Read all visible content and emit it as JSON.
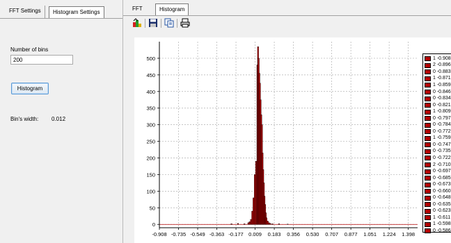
{
  "left_tabs": [
    {
      "label": "FFT Settings",
      "active": false
    },
    {
      "label": "Histogram Settings",
      "active": true
    }
  ],
  "right_tabs": [
    {
      "label": "FFT",
      "active": false
    },
    {
      "label": "Histogram",
      "active": true
    }
  ],
  "settings": {
    "bins_label": "Number of bins",
    "bins_value": "200",
    "histogram_button": "Histogram",
    "bin_width_label": "Bin's width:",
    "bin_width_value": "0.012"
  },
  "toolbar": {
    "icons": [
      "colors-icon",
      "save-icon",
      "copy-icon",
      "print-icon"
    ]
  },
  "colors": {
    "bar_fill": "#b30000",
    "bar_edge": "#000000",
    "baseline": "#b30000"
  },
  "chart_data": {
    "type": "bar",
    "title": "",
    "xlabel": "",
    "ylabel": "",
    "xlim": [
      -0.908,
      1.484
    ],
    "ylim": [
      -10,
      550
    ],
    "yticks": [
      0,
      50,
      100,
      150,
      200,
      250,
      300,
      350,
      400,
      450,
      500
    ],
    "xticks": [
      "-0.908",
      "-0.735",
      "-0.549",
      "-0.363",
      "-0.177",
      "0.009",
      "0.183",
      "0.356",
      "0.530",
      "0.707",
      "0.877",
      "1.051",
      "1.224",
      "1.398"
    ],
    "grid": true,
    "bin_width": 0.012,
    "series": [
      {
        "x": [
          -0.24,
          -0.18,
          -0.12,
          -0.084,
          -0.072,
          -0.06,
          -0.048,
          -0.036,
          -0.024,
          -0.012,
          0.0,
          0.006,
          0.012,
          0.018,
          0.024,
          0.03,
          0.036,
          0.042,
          0.048,
          0.054,
          0.06,
          0.066,
          0.072,
          0.078,
          0.084,
          0.096,
          0.108,
          0.12,
          0.14,
          0.2,
          0.28
        ],
        "values": [
          2,
          3,
          2,
          5,
          8,
          15,
          40,
          80,
          150,
          190,
          480,
          535,
          500,
          455,
          425,
          375,
          330,
          300,
          215,
          165,
          125,
          85,
          60,
          35,
          20,
          10,
          5,
          3,
          2,
          2,
          1
        ]
      }
    ],
    "legend_position": "right",
    "legend": [
      "1 -0.908",
      "2 -0.896",
      "0 -0.883",
      "1 -0.871",
      "1 -0.859",
      "0 -0.846",
      "0 -0.834",
      "0 -0.821",
      "1 -0.809",
      "0 -0.797",
      "0 -0.784",
      "0 -0.772",
      "1 -0.759",
      "0 -0.747",
      "0 -0.735",
      "0 -0.722",
      "2 -0.710",
      "0 -0.697",
      "0 -0.685",
      "0 -0.673",
      "0 -0.660",
      "0 -0.648",
      "0 -0.635",
      "0 -0.623",
      "1 -0.611",
      "1 -0.598",
      "0 -0.586"
    ]
  }
}
